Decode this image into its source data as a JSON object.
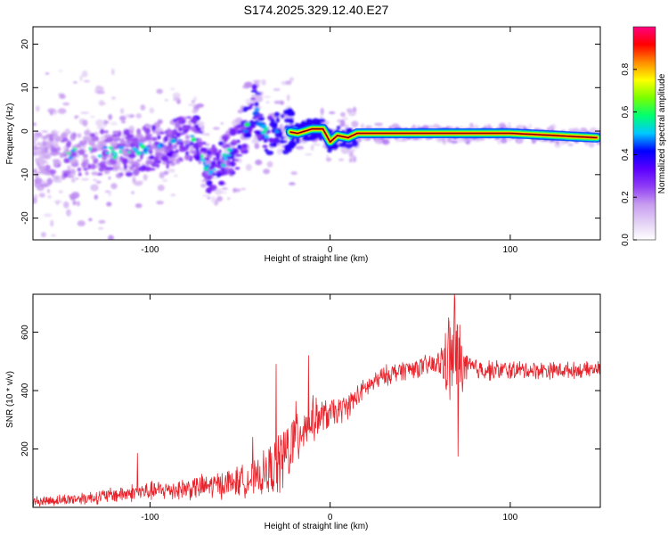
{
  "title": "S174.2025.329.12.40.E27",
  "colors": {
    "snr_line": "#e8232b",
    "frame": "#000000",
    "background": "#ffffff"
  },
  "chart_data": [
    {
      "type": "heatmap",
      "name": "spectrogram",
      "xlabel": "Height of straight line (km)",
      "ylabel": "Frequency (Hz)",
      "xlim": [
        -165,
        150
      ],
      "ylim": [
        -25,
        24
      ],
      "xticks": [
        -100,
        0,
        100
      ],
      "yticks": [
        -20,
        -10,
        0,
        10,
        20
      ],
      "colorbar": {
        "label": "Normalized spectral amplitude",
        "range": [
          0,
          1
        ],
        "ticks": [
          "0.0",
          "0.2",
          "0.4",
          "0.6",
          "0.8"
        ],
        "colormap": [
          "#ffffff",
          "#e3d0f5",
          "#c79cf0",
          "#8f3df5",
          "#5a00ff",
          "#0000ff",
          "#00c8ff",
          "#00ff70",
          "#7aff00",
          "#ffff00",
          "#ff8c00",
          "#ff0000",
          "#ff0080"
        ]
      },
      "ridge": {
        "x": [
          -165,
          -150,
          -130,
          -110,
          -90,
          -75,
          -68,
          -60,
          -50,
          -42,
          -35,
          -25,
          -18,
          -10,
          -4,
          0,
          4,
          10,
          15,
          60,
          90,
          100,
          148
        ],
        "freq": [
          -5,
          -6,
          -5,
          -5,
          -3,
          -1,
          -9,
          -7,
          -3,
          6,
          -1,
          0,
          -0.5,
          0.5,
          0.5,
          -2.5,
          -1,
          -1.5,
          -0.5,
          -0.5,
          -0.5,
          -0.5,
          -1.5
        ],
        "amplitude": [
          0.15,
          0.2,
          0.22,
          0.25,
          0.28,
          0.3,
          0.3,
          0.32,
          0.35,
          0.4,
          0.45,
          0.55,
          0.8,
          0.95,
          0.9,
          0.85,
          0.9,
          0.92,
          0.95,
          0.95,
          0.93,
          0.95,
          0.9
        ]
      }
    },
    {
      "type": "line",
      "name": "snr",
      "xlabel": "Height of straight line (km)",
      "ylabel": "SNR (10 * v/v)",
      "xlim": [
        -165,
        150
      ],
      "ylim": [
        0,
        730
      ],
      "xticks": [
        -100,
        0,
        100
      ],
      "yticks": [
        200,
        400,
        600
      ],
      "series": [
        {
          "name": "SNR",
          "x": [
            -165,
            -150,
            -130,
            -110,
            -90,
            -80,
            -70,
            -60,
            -50,
            -40,
            -30,
            -25,
            -20,
            -15,
            -10,
            -5,
            0,
            5,
            10,
            15,
            20,
            25,
            30,
            40,
            50,
            60,
            62,
            65,
            68,
            70,
            73,
            75,
            80,
            90,
            100,
            110,
            120,
            130,
            140,
            150
          ],
          "values": [
            20,
            25,
            35,
            50,
            60,
            65,
            70,
            80,
            90,
            100,
            140,
            180,
            230,
            280,
            300,
            310,
            320,
            330,
            350,
            380,
            410,
            430,
            450,
            470,
            480,
            490,
            500,
            510,
            500,
            495,
            490,
            480,
            475,
            470,
            470,
            470,
            470,
            470,
            470,
            475
          ],
          "noise": [
            20,
            22,
            28,
            35,
            40,
            45,
            50,
            55,
            60,
            70,
            120,
            150,
            140,
            110,
            90,
            70,
            60,
            55,
            50,
            45,
            40,
            40,
            40,
            40,
            40,
            50,
            90,
            150,
            250,
            280,
            120,
            70,
            45,
            40,
            38,
            35,
            35,
            32,
            30,
            30
          ],
          "peaks": [
            {
              "x": -107,
              "y": 185
            },
            {
              "x": -43,
              "y": 240
            },
            {
              "x": -30,
              "y": 490
            },
            {
              "x": -12,
              "y": 520
            },
            {
              "x": 69,
              "y": 730
            },
            {
              "x": 71,
              "y": 175
            }
          ]
        }
      ]
    }
  ]
}
